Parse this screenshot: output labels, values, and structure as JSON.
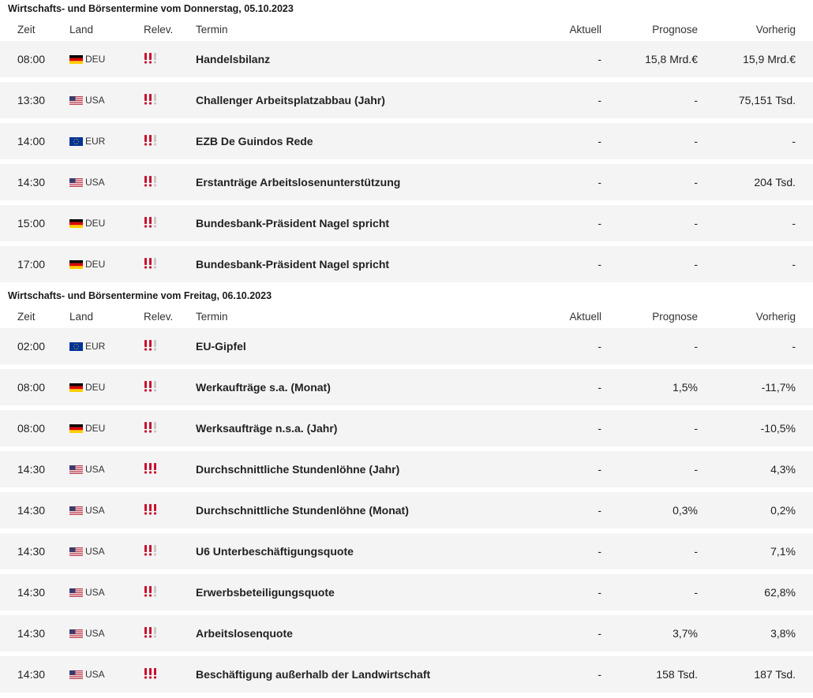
{
  "columns": {
    "time": "Zeit",
    "land": "Land",
    "relevance": "Relev.",
    "termin": "Termin",
    "aktuell": "Aktuell",
    "prognose": "Prognose",
    "vorherig": "Vorherig"
  },
  "colors": {
    "relevance_active": "#c8102e",
    "relevance_inactive": "#c8c8c8",
    "row_background": "#f4f4f4"
  },
  "sections": [
    {
      "title": "Wirtschafts- und Börsentermine vom Donnerstag, 05.10.2023",
      "rows": [
        {
          "time": "08:00",
          "flag": "germany-flag-icon",
          "country": "DEU",
          "relevance": 2,
          "event": "Handelsbilanz",
          "actual": "-",
          "forecast": "15,8 Mrd.€",
          "previous": "15,9 Mrd.€"
        },
        {
          "time": "13:30",
          "flag": "usa-flag-icon",
          "country": "USA",
          "relevance": 2,
          "event": "Challenger Arbeitsplatzabbau (Jahr)",
          "actual": "-",
          "forecast": "-",
          "previous": "75,151 Tsd."
        },
        {
          "time": "14:00",
          "flag": "eu-flag-icon",
          "country": "EUR",
          "relevance": 2,
          "event": "EZB De Guindos Rede",
          "actual": "-",
          "forecast": "-",
          "previous": "-"
        },
        {
          "time": "14:30",
          "flag": "usa-flag-icon",
          "country": "USA",
          "relevance": 2,
          "event": "Erstanträge Arbeitslosenunterstützung",
          "actual": "-",
          "forecast": "-",
          "previous": "204 Tsd."
        },
        {
          "time": "15:00",
          "flag": "germany-flag-icon",
          "country": "DEU",
          "relevance": 2,
          "event": "Bundesbank-Präsident Nagel spricht",
          "actual": "-",
          "forecast": "-",
          "previous": "-"
        },
        {
          "time": "17:00",
          "flag": "germany-flag-icon",
          "country": "DEU",
          "relevance": 2,
          "event": "Bundesbank-Präsident Nagel spricht",
          "actual": "-",
          "forecast": "-",
          "previous": "-"
        }
      ]
    },
    {
      "title": "Wirtschafts- und Börsentermine vom Freitag, 06.10.2023",
      "rows": [
        {
          "time": "02:00",
          "flag": "eu-flag-icon",
          "country": "EUR",
          "relevance": 2,
          "event": "EU-Gipfel",
          "actual": "-",
          "forecast": "-",
          "previous": "-"
        },
        {
          "time": "08:00",
          "flag": "germany-flag-icon",
          "country": "DEU",
          "relevance": 2,
          "event": "Werkaufträge s.a. (Monat)",
          "actual": "-",
          "forecast": "1,5%",
          "previous": "-11,7%"
        },
        {
          "time": "08:00",
          "flag": "germany-flag-icon",
          "country": "DEU",
          "relevance": 2,
          "event": "Werksaufträge n.s.a. (Jahr)",
          "actual": "-",
          "forecast": "-",
          "previous": "-10,5%"
        },
        {
          "time": "14:30",
          "flag": "usa-flag-icon",
          "country": "USA",
          "relevance": 3,
          "event": "Durchschnittliche Stundenlöhne (Jahr)",
          "actual": "-",
          "forecast": "-",
          "previous": "4,3%"
        },
        {
          "time": "14:30",
          "flag": "usa-flag-icon",
          "country": "USA",
          "relevance": 3,
          "event": "Durchschnittliche Stundenlöhne (Monat)",
          "actual": "-",
          "forecast": "0,3%",
          "previous": "0,2%"
        },
        {
          "time": "14:30",
          "flag": "usa-flag-icon",
          "country": "USA",
          "relevance": 2,
          "event": "U6 Unterbeschäftigungsquote",
          "actual": "-",
          "forecast": "-",
          "previous": "7,1%"
        },
        {
          "time": "14:30",
          "flag": "usa-flag-icon",
          "country": "USA",
          "relevance": 2,
          "event": "Erwerbsbeteiligungsquote",
          "actual": "-",
          "forecast": "-",
          "previous": "62,8%"
        },
        {
          "time": "14:30",
          "flag": "usa-flag-icon",
          "country": "USA",
          "relevance": 2,
          "event": "Arbeitslosenquote",
          "actual": "-",
          "forecast": "3,7%",
          "previous": "3,8%"
        },
        {
          "time": "14:30",
          "flag": "usa-flag-icon",
          "country": "USA",
          "relevance": 3,
          "event": "Beschäftigung außerhalb der Landwirtschaft",
          "actual": "-",
          "forecast": "158 Tsd.",
          "previous": "187 Tsd."
        }
      ]
    }
  ]
}
